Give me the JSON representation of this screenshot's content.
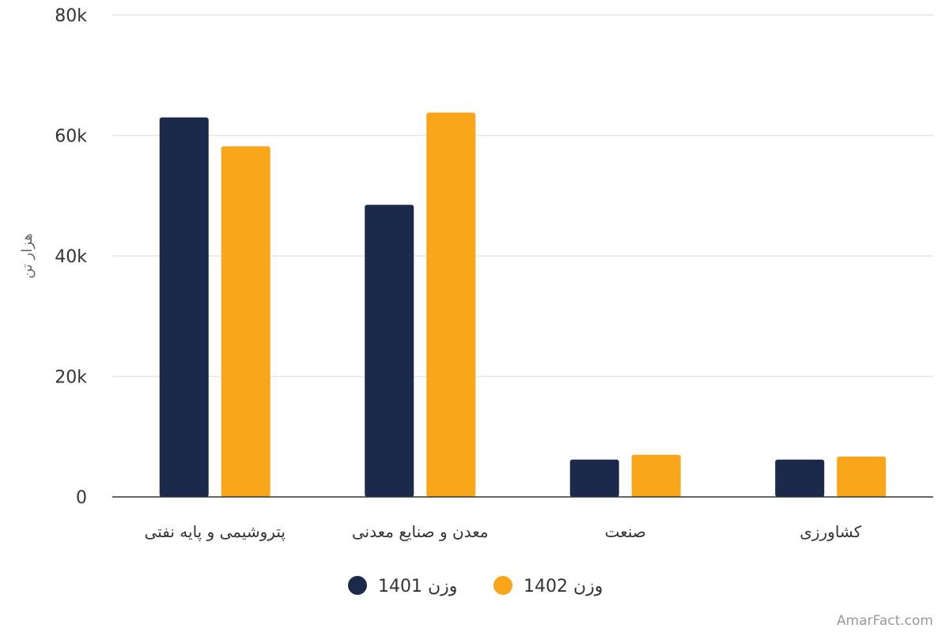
{
  "chart_data": {
    "type": "bar",
    "categories": [
      "پتروشیمی و پایه نفتی",
      "معدن و صنایع معدنی",
      "صنعت",
      "کشاورزی"
    ],
    "series": [
      {
        "name": "وزن 1401",
        "color": "#1b2a4b",
        "values": [
          63000,
          48500,
          6200,
          6200
        ]
      },
      {
        "name": "وزن 1402",
        "color": "#f9a61a",
        "values": [
          58200,
          63800,
          7000,
          6700
        ]
      }
    ],
    "ylabel": "هزار تن",
    "ylim": [
      0,
      80000
    ],
    "yticks": [
      {
        "value": 0,
        "label": "0"
      },
      {
        "value": 20000,
        "label": "20k"
      },
      {
        "value": 40000,
        "label": "40k"
      },
      {
        "value": 60000,
        "label": "60k"
      },
      {
        "value": 80000,
        "label": "80k"
      }
    ],
    "grid": true,
    "legend_position": "bottom-center"
  },
  "credit": "AmarFact.com"
}
